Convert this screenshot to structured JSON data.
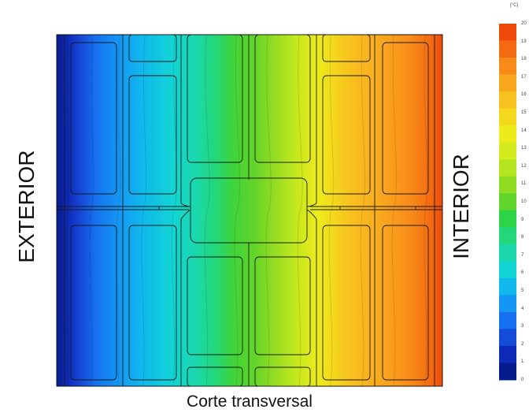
{
  "labels": {
    "exterior": "EXTERIOR",
    "interior": "INTERIOR",
    "caption": "Corte transversal"
  },
  "legend": {
    "unit": "[°C]",
    "ticks": [
      "20",
      "19",
      "18",
      "17",
      "16",
      "15",
      "14",
      "13",
      "12",
      "11",
      "10",
      "9",
      "8",
      "7",
      "6",
      "5",
      "4",
      "3",
      "2",
      "1",
      "0"
    ],
    "colors": [
      "#f04a0a",
      "#f46a10",
      "#f78a18",
      "#f9a81e",
      "#f8c21e",
      "#f4d81c",
      "#eeeb1a",
      "#d4ec1e",
      "#b4e51e",
      "#90dc22",
      "#60d42a",
      "#2ed448",
      "#22d87a",
      "#1ad8ac",
      "#12d4d4",
      "#10b8ec",
      "#1496f4",
      "#1670f0",
      "#144cd8",
      "#0e2ab8",
      "#071c8c"
    ]
  },
  "temperature_range": [
    0,
    20
  ]
}
